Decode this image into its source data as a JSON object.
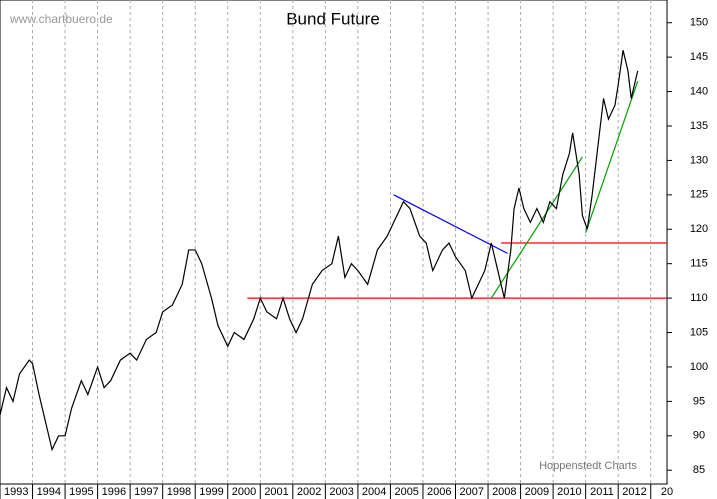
{
  "chart_data": {
    "type": "line",
    "title": "Bund Future",
    "watermark": "www.chartbuero.de",
    "source": "Hoppenstedt Charts",
    "x": [
      1993.0,
      1993.2,
      1993.4,
      1993.6,
      1993.9,
      1994.0,
      1994.2,
      1994.4,
      1994.6,
      1994.8,
      1995.0,
      1995.2,
      1995.5,
      1995.7,
      1996.0,
      1996.2,
      1996.4,
      1996.7,
      1997.0,
      1997.2,
      1997.5,
      1997.8,
      1998.0,
      1998.3,
      1998.6,
      1998.8,
      1999.0,
      1999.2,
      1999.5,
      1999.7,
      2000.0,
      2000.2,
      2000.5,
      2000.8,
      2001.0,
      2001.2,
      2001.5,
      2001.7,
      2001.9,
      2002.1,
      2002.3,
      2002.6,
      2002.9,
      2003.2,
      2003.4,
      2003.6,
      2003.8,
      2004.0,
      2004.3,
      2004.6,
      2004.9,
      2005.1,
      2005.4,
      2005.6,
      2005.9,
      2006.1,
      2006.3,
      2006.6,
      2006.8,
      2007.0,
      2007.3,
      2007.5,
      2007.7,
      2007.9,
      2008.1,
      2008.3,
      2008.5,
      2008.7,
      2008.8,
      2008.95,
      2009.1,
      2009.3,
      2009.5,
      2009.7,
      2009.9,
      2010.1,
      2010.3,
      2010.5,
      2010.6,
      2010.8,
      2010.9,
      2011.05,
      2011.2,
      2011.4,
      2011.55,
      2011.7,
      2011.9,
      2012.0,
      2012.15,
      2012.3,
      2012.4,
      2012.55,
      2012.6
    ],
    "series": [
      {
        "name": "Bund Future",
        "color": "#000000",
        "values": [
          93,
          97,
          95,
          99,
          101,
          100.5,
          96,
          92,
          88,
          90,
          90,
          94,
          98,
          96,
          100,
          97,
          98,
          101,
          102,
          101,
          104,
          105,
          108,
          109,
          112,
          117,
          117,
          115,
          110,
          106,
          103,
          105,
          104,
          107,
          110,
          108,
          107,
          110,
          107,
          105,
          107,
          112,
          114,
          115,
          119,
          113,
          115,
          114,
          112,
          117,
          119,
          121,
          124,
          123,
          119,
          118,
          114,
          117,
          118,
          116,
          114,
          110,
          112,
          114,
          118,
          114,
          110,
          117,
          123,
          126,
          123,
          121,
          123,
          121,
          124,
          123,
          128,
          131,
          134,
          128,
          122,
          120,
          125,
          133,
          139,
          136,
          138,
          141,
          146,
          143,
          139,
          142,
          143
        ]
      }
    ],
    "trend_lines": [
      {
        "color": "#ff0000",
        "x": [
          2000.6,
          2013.5
        ],
        "y": [
          110,
          110
        ]
      },
      {
        "color": "#ff0000",
        "x": [
          2008.4,
          2013.5
        ],
        "y": [
          118,
          118
        ]
      },
      {
        "color": "#0000ff",
        "x": [
          2005.1,
          2008.6
        ],
        "y": [
          125,
          116.5
        ]
      },
      {
        "color": "#00a000",
        "x": [
          2008.1,
          2010.9
        ],
        "y": [
          110,
          130.5
        ]
      },
      {
        "color": "#00a000",
        "x": [
          2011.0,
          2012.6
        ],
        "y": [
          119.5,
          141.5
        ]
      }
    ],
    "xlim": [
      1993,
      2013.5
    ],
    "xticks": [
      1993,
      1994,
      1995,
      1996,
      1997,
      1998,
      1999,
      2000,
      2001,
      2002,
      2003,
      2004,
      2005,
      2006,
      2007,
      2008,
      2009,
      2010,
      2011,
      2012,
      {
        "value": 2013,
        "label": "20"
      }
    ],
    "ylim": [
      83,
      153.3
    ],
    "yticks": [
      85,
      90,
      95,
      100,
      105,
      110,
      115,
      120,
      125,
      130,
      135,
      140,
      145,
      150
    ],
    "grid": true
  }
}
